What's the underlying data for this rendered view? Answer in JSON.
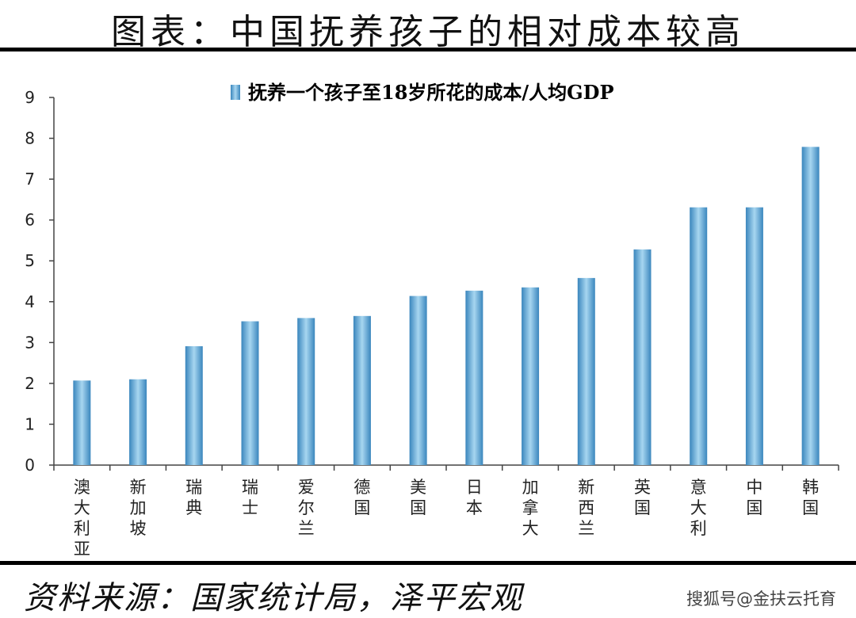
{
  "header": {
    "title": "图表：中国抚养孩子的相对成本较高"
  },
  "footer": {
    "source": "资料来源：国家统计局，泽平宏观",
    "watermark": "搜狐号@金扶云托育"
  },
  "colors": {
    "bar": "#4f97c8",
    "bar_light": "#9fd0ee",
    "rule": "#000000"
  },
  "chart_data": {
    "type": "bar",
    "title": "",
    "xlabel": "",
    "ylabel": "",
    "ylim": [
      0,
      9
    ],
    "yticks": [
      "0",
      "1",
      "2",
      "3",
      "4",
      "5",
      "6",
      "7",
      "8",
      "9"
    ],
    "legend": "top",
    "grid": false,
    "categories": [
      "澳大利亚",
      "新加坡",
      "瑞典",
      "瑞士",
      "爱尔兰",
      "德国",
      "美国",
      "日本",
      "加拿大",
      "新西兰",
      "英国",
      "意大利",
      "中国",
      "韩国"
    ],
    "series": [
      {
        "name": "抚养一个孩子至18岁所花的成本/人均GDP",
        "values": [
          2.07,
          2.1,
          2.91,
          3.52,
          3.6,
          3.65,
          4.14,
          4.27,
          4.35,
          4.58,
          5.28,
          6.31,
          6.31,
          7.79
        ]
      }
    ]
  }
}
